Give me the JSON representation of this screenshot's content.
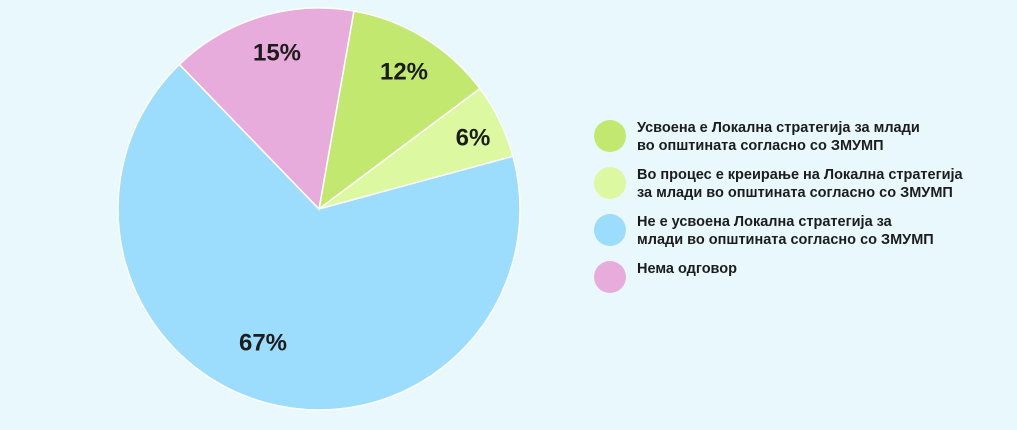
{
  "chart_data": {
    "type": "pie",
    "slices": [
      {
        "label": "Усвоена е Локална стратегија за млади\nво општината согласно со ЗМУМП",
        "value": 12,
        "display": "12%",
        "color": "#c2e870"
      },
      {
        "label": "Во процес е креирање на Локална стратегија\nза млади во општината согласно со ЗМУМП",
        "value": 6,
        "display": "6%",
        "color": "#dcf8a0"
      },
      {
        "label": "Не е усвоена Локална стратегија за\nмлади во општината согласно со ЗМУМП",
        "value": 67,
        "display": "67%",
        "color": "#9cdcfc"
      },
      {
        "label": "Нема одговор",
        "value": 15,
        "display": "15%",
        "color": "#e8acdc"
      }
    ],
    "start_angle_deg": 10,
    "direction": "clockwise",
    "legend_position": "right"
  }
}
